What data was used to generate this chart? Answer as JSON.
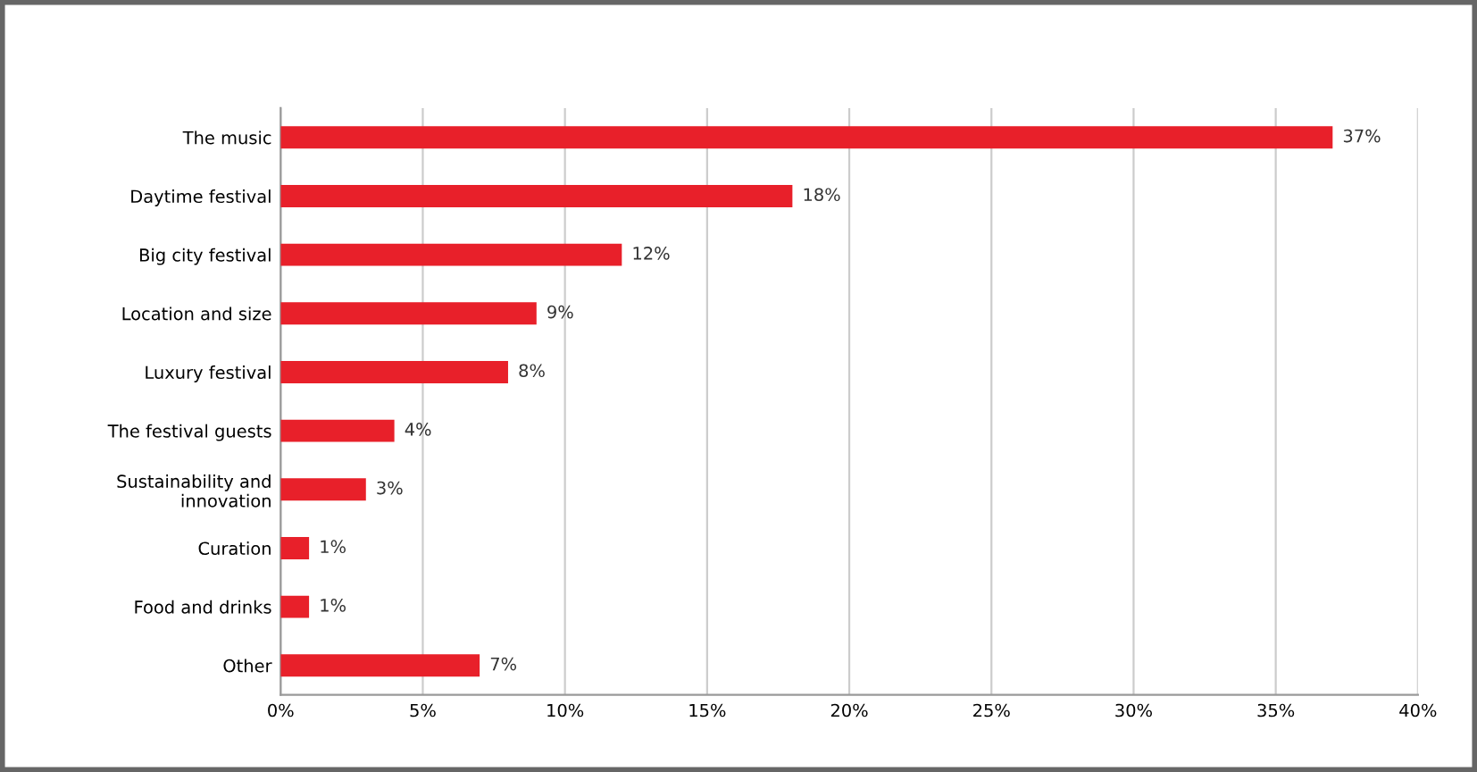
{
  "chart_data": {
    "type": "bar",
    "orientation": "horizontal",
    "categories": [
      "The music",
      "Daytime festival",
      "Big city festival",
      "Location and size",
      "Luxury festival",
      "The festival guests",
      "Sustainability and\ninnovation",
      "Curation",
      "Food and drinks",
      "Other"
    ],
    "values": [
      37,
      18,
      12,
      9,
      8,
      4,
      3,
      1,
      1,
      7
    ],
    "color": "#e8202a",
    "value_labels": [
      "37%",
      "18%",
      "12%",
      "9%",
      "8%",
      "4%",
      "3%",
      "1%",
      "1%",
      "7%"
    ],
    "xlim": [
      0,
      40
    ],
    "xticks": [
      {
        "value": 0,
        "label": "0%"
      },
      {
        "value": 5,
        "label": "5%"
      },
      {
        "value": 10,
        "label": "10%"
      },
      {
        "value": 15,
        "label": "15%"
      },
      {
        "value": 20,
        "label": "20%"
      },
      {
        "value": 25,
        "label": "25%"
      },
      {
        "value": 30,
        "label": "30%"
      },
      {
        "value": 35,
        "label": "35%"
      },
      {
        "value": 40,
        "label": "40%"
      }
    ],
    "grid": "x",
    "legend": false
  }
}
